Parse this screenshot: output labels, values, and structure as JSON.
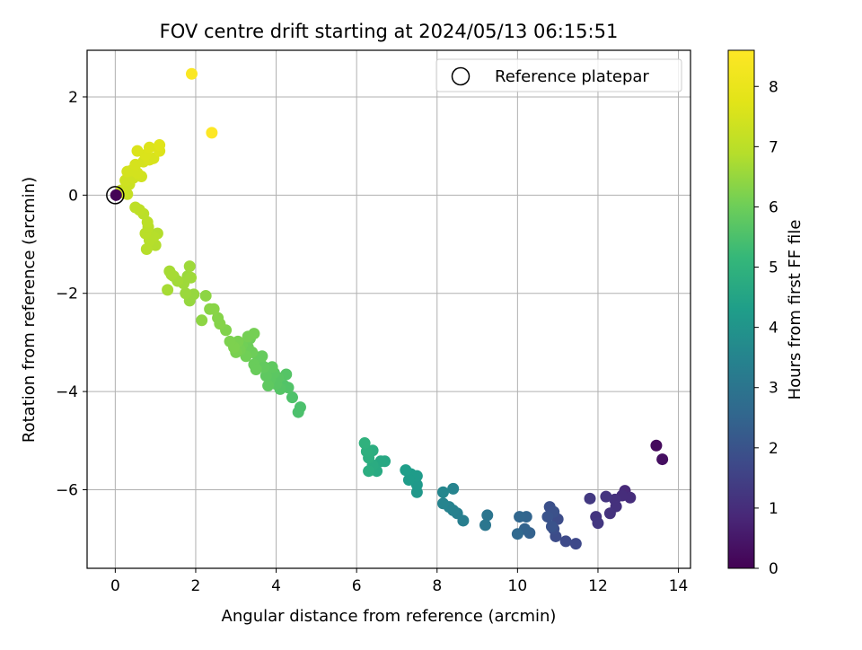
{
  "chart_data": {
    "type": "scatter",
    "title": "FOV centre drift starting at 2024/05/13 06:15:51",
    "xlabel": "Angular distance from reference (arcmin)",
    "ylabel": "Rotation from reference (arcmin)",
    "xlim": [
      -0.7,
      14.3
    ],
    "ylim": [
      -7.6,
      2.95
    ],
    "xticks": [
      "0",
      "2",
      "4",
      "6",
      "8",
      "10",
      "12",
      "14"
    ],
    "yticks": [
      "−6",
      "−4",
      "−2",
      "0",
      "2"
    ],
    "grid": true,
    "legend": {
      "position": "top-right",
      "label": "Reference platepar"
    },
    "colorbar": {
      "label": "Hours from first FF file",
      "range": [
        0,
        8.6
      ],
      "ticks": [
        "0",
        "1",
        "2",
        "3",
        "4",
        "5",
        "6",
        "7",
        "8"
      ],
      "colormap": "viridis"
    },
    "reference_point": {
      "x": 0,
      "y": 0
    },
    "points": [
      [
        13.45,
        -5.1,
        0.2
      ],
      [
        13.6,
        -5.38,
        0.3
      ],
      [
        12.67,
        -6.02,
        0.9
      ],
      [
        12.8,
        -6.16,
        1.0
      ],
      [
        12.6,
        -6.12,
        1.0
      ],
      [
        12.42,
        -6.2,
        1.1
      ],
      [
        12.45,
        -6.34,
        1.1
      ],
      [
        12.3,
        -6.48,
        1.15
      ],
      [
        12.2,
        -6.14,
        1.2
      ],
      [
        11.95,
        -6.55,
        1.2
      ],
      [
        12.0,
        -6.68,
        1.25
      ],
      [
        11.8,
        -6.18,
        1.3
      ],
      [
        11.45,
        -7.1,
        1.7
      ],
      [
        11.2,
        -7.05,
        1.75
      ],
      [
        11.0,
        -6.6,
        1.8
      ],
      [
        10.95,
        -6.95,
        1.8
      ],
      [
        10.9,
        -6.8,
        1.85
      ],
      [
        10.85,
        -6.45,
        1.9
      ],
      [
        10.8,
        -6.35,
        1.9
      ],
      [
        10.9,
        -6.45,
        1.95
      ],
      [
        10.75,
        -6.55,
        2.0
      ],
      [
        10.85,
        -6.75,
        2.0
      ],
      [
        10.3,
        -6.88,
        2.4
      ],
      [
        10.18,
        -6.8,
        2.45
      ],
      [
        10.22,
        -6.55,
        2.5
      ],
      [
        10.05,
        -6.55,
        2.55
      ],
      [
        10.0,
        -6.9,
        2.6
      ],
      [
        9.25,
        -6.52,
        3.0
      ],
      [
        9.2,
        -6.72,
        3.05
      ],
      [
        8.65,
        -6.63,
        3.3
      ],
      [
        8.5,
        -6.48,
        3.35
      ],
      [
        8.4,
        -6.42,
        3.4
      ],
      [
        8.3,
        -6.35,
        3.45
      ],
      [
        8.15,
        -6.28,
        3.5
      ],
      [
        8.4,
        -5.98,
        3.5
      ],
      [
        8.15,
        -6.05,
        3.55
      ],
      [
        7.5,
        -6.05,
        4.1
      ],
      [
        7.5,
        -5.9,
        4.15
      ],
      [
        7.5,
        -5.72,
        4.2
      ],
      [
        7.35,
        -5.68,
        4.25
      ],
      [
        7.3,
        -5.8,
        4.25
      ],
      [
        7.22,
        -5.6,
        4.3
      ],
      [
        6.7,
        -5.42,
        4.6
      ],
      [
        6.6,
        -5.42,
        4.65
      ],
      [
        6.5,
        -5.62,
        4.7
      ],
      [
        6.4,
        -5.5,
        4.75
      ],
      [
        6.3,
        -5.62,
        4.8
      ],
      [
        6.4,
        -5.2,
        4.8
      ],
      [
        6.3,
        -5.35,
        4.85
      ],
      [
        6.25,
        -5.22,
        4.9
      ],
      [
        6.2,
        -5.05,
        4.95
      ],
      [
        4.6,
        -4.32,
        5.5
      ],
      [
        4.55,
        -4.42,
        5.5
      ],
      [
        4.4,
        -4.12,
        5.55
      ],
      [
        4.3,
        -3.92,
        5.6
      ],
      [
        4.2,
        -3.88,
        5.6
      ],
      [
        4.25,
        -3.65,
        5.65
      ],
      [
        4.1,
        -3.95,
        5.65
      ],
      [
        4.0,
        -3.85,
        5.7
      ],
      [
        4.05,
        -3.72,
        5.7
      ],
      [
        3.95,
        -3.62,
        5.75
      ],
      [
        3.85,
        -3.75,
        5.75
      ],
      [
        3.8,
        -3.88,
        5.8
      ],
      [
        3.75,
        -3.68,
        5.8
      ],
      [
        3.9,
        -3.5,
        5.8
      ],
      [
        3.7,
        -3.5,
        5.85
      ],
      [
        3.6,
        -3.4,
        5.85
      ],
      [
        3.55,
        -3.3,
        5.9
      ],
      [
        3.65,
        -3.28,
        5.9
      ],
      [
        3.45,
        -3.45,
        5.95
      ],
      [
        3.5,
        -3.55,
        5.95
      ],
      [
        3.4,
        -3.2,
        6.0
      ],
      [
        3.3,
        -3.1,
        6.0
      ],
      [
        3.35,
        -2.92,
        6.0
      ],
      [
        3.25,
        -3.28,
        6.05
      ],
      [
        3.15,
        -3.05,
        6.05
      ],
      [
        3.45,
        -2.82,
        6.1
      ],
      [
        3.3,
        -2.88,
        6.1
      ],
      [
        3.1,
        -3.15,
        6.1
      ],
      [
        3.0,
        -3.2,
        6.15
      ],
      [
        3.05,
        -2.98,
        6.15
      ],
      [
        2.95,
        -3.1,
        6.2
      ],
      [
        2.85,
        -2.98,
        6.2
      ],
      [
        2.75,
        -2.75,
        6.25
      ],
      [
        2.6,
        -2.62,
        6.3
      ],
      [
        2.55,
        -2.5,
        6.3
      ],
      [
        2.45,
        -2.32,
        6.35
      ],
      [
        2.35,
        -2.32,
        6.35
      ],
      [
        2.25,
        -2.05,
        6.4
      ],
      [
        2.15,
        -2.55,
        6.4
      ],
      [
        1.85,
        -2.15,
        6.5
      ],
      [
        1.95,
        -2.02,
        6.5
      ],
      [
        1.75,
        -2.0,
        6.55
      ],
      [
        1.8,
        -1.65,
        6.55
      ],
      [
        1.7,
        -1.8,
        6.6
      ],
      [
        1.88,
        -1.68,
        6.6
      ],
      [
        1.85,
        -1.45,
        6.6
      ],
      [
        1.55,
        -1.75,
        6.65
      ],
      [
        1.45,
        -1.65,
        6.65
      ],
      [
        1.35,
        -1.55,
        6.7
      ],
      [
        1.4,
        -1.62,
        6.7
      ],
      [
        1.3,
        -1.93,
        6.7
      ],
      [
        1.05,
        -0.78,
        6.85
      ],
      [
        1.0,
        -1.02,
        6.85
      ],
      [
        0.95,
        -0.85,
        6.9
      ],
      [
        0.85,
        -0.92,
        6.9
      ],
      [
        0.78,
        -1.1,
        6.9
      ],
      [
        0.75,
        -0.78,
        6.95
      ],
      [
        0.82,
        -0.65,
        6.95
      ],
      [
        0.8,
        -0.55,
        7.0
      ],
      [
        0.7,
        -0.38,
        7.0
      ],
      [
        0.6,
        -0.3,
        7.05
      ],
      [
        0.5,
        -0.25,
        7.05
      ],
      [
        0.3,
        0.02,
        7.2
      ],
      [
        0.2,
        0.05,
        7.25
      ],
      [
        0.15,
        0.1,
        7.3
      ],
      [
        0.35,
        0.22,
        7.3
      ],
      [
        0.25,
        0.3,
        7.35
      ],
      [
        0.45,
        0.35,
        7.35
      ],
      [
        0.65,
        0.38,
        7.4
      ],
      [
        0.4,
        0.5,
        7.4
      ],
      [
        0.55,
        0.45,
        7.45
      ],
      [
        0.3,
        0.48,
        7.45
      ],
      [
        0.5,
        0.62,
        7.5
      ],
      [
        0.7,
        0.68,
        7.5
      ],
      [
        0.85,
        0.72,
        7.55
      ],
      [
        0.95,
        0.75,
        7.55
      ],
      [
        0.75,
        0.82,
        7.6
      ],
      [
        0.55,
        0.9,
        7.6
      ],
      [
        0.85,
        0.97,
        7.65
      ],
      [
        1.1,
        0.9,
        7.65
      ],
      [
        1.1,
        1.02,
        7.7
      ],
      [
        1.9,
        2.47,
        8.5
      ],
      [
        2.4,
        1.27,
        8.6
      ],
      [
        0.02,
        0.0,
        0.05
      ]
    ]
  }
}
